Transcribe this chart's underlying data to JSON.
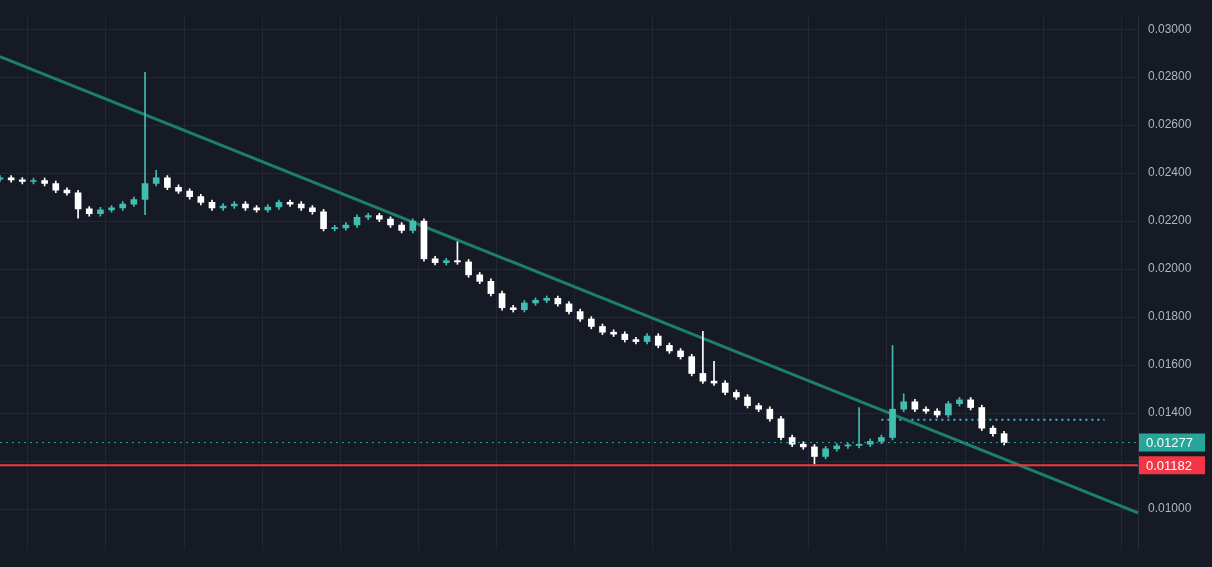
{
  "chart_data": {
    "type": "candlestick",
    "categories": [
      null,
      null,
      null,
      null,
      null,
      null,
      null,
      null,
      null,
      null,
      null,
      null,
      null,
      null,
      null,
      null,
      null,
      null,
      null,
      null,
      null,
      null,
      null,
      null,
      null,
      null,
      null,
      null,
      null,
      null,
      null,
      null,
      null,
      null,
      null,
      null,
      null,
      null,
      null,
      null,
      null,
      null,
      null,
      null,
      null,
      null,
      null,
      null,
      null,
      null,
      null,
      null,
      null,
      null,
      null,
      null,
      null,
      null,
      null,
      null,
      null,
      null,
      null,
      null,
      null,
      null,
      null,
      null,
      null,
      null,
      null,
      null,
      null,
      null,
      null,
      null,
      null,
      null,
      null,
      null,
      null,
      null,
      null,
      null,
      null,
      null,
      null,
      null,
      null,
      null,
      null,
      null,
      null,
      null,
      null,
      null,
      null,
      null,
      null,
      null,
      null,
      null,
      null
    ],
    "ohlc": [
      [
        0.02375,
        0.0239,
        0.02365,
        0.0238
      ],
      [
        0.0238,
        0.0239,
        0.02362,
        0.02372
      ],
      [
        0.02372,
        0.02382,
        0.02355,
        0.02365
      ],
      [
        0.02365,
        0.02379,
        0.02355,
        0.02369
      ],
      [
        0.02369,
        0.02379,
        0.02347,
        0.02357
      ],
      [
        0.02357,
        0.02367,
        0.02319,
        0.02329
      ],
      [
        0.02329,
        0.02339,
        0.02308,
        0.02318
      ],
      [
        0.02318,
        0.02328,
        0.02212,
        0.02251
      ],
      [
        0.02251,
        0.02261,
        0.02221,
        0.02231
      ],
      [
        0.02231,
        0.02257,
        0.02221,
        0.02247
      ],
      [
        0.02247,
        0.02265,
        0.02237,
        0.02255
      ],
      [
        0.02255,
        0.02281,
        0.02245,
        0.02271
      ],
      [
        0.02271,
        0.023,
        0.02261,
        0.0229
      ],
      [
        0.0229,
        0.0282,
        0.02227,
        0.02357
      ],
      [
        0.02357,
        0.02412,
        0.02347,
        0.0238
      ],
      [
        0.0238,
        0.0239,
        0.02331,
        0.02341
      ],
      [
        0.02341,
        0.02351,
        0.02315,
        0.02325
      ],
      [
        0.02325,
        0.02335,
        0.02292,
        0.02302
      ],
      [
        0.02302,
        0.02312,
        0.02268,
        0.02278
      ],
      [
        0.02278,
        0.02288,
        0.02245,
        0.02255
      ],
      [
        0.02255,
        0.02273,
        0.02245,
        0.02263
      ],
      [
        0.02263,
        0.02281,
        0.02253,
        0.02271
      ],
      [
        0.02271,
        0.02281,
        0.02245,
        0.02255
      ],
      [
        0.02255,
        0.02265,
        0.02237,
        0.02247
      ],
      [
        0.02247,
        0.02269,
        0.02237,
        0.02259
      ],
      [
        0.02259,
        0.02288,
        0.02249,
        0.02278
      ],
      [
        0.02278,
        0.02288,
        0.02261,
        0.02271
      ],
      [
        0.02271,
        0.02281,
        0.02245,
        0.02255
      ],
      [
        0.02255,
        0.02265,
        0.02229,
        0.02239
      ],
      [
        0.02239,
        0.02249,
        0.02159,
        0.02169
      ],
      [
        0.02169,
        0.02182,
        0.02159,
        0.02172
      ],
      [
        0.02172,
        0.02194,
        0.02162,
        0.02184
      ],
      [
        0.02184,
        0.02226,
        0.02174,
        0.02216
      ],
      [
        0.02216,
        0.02233,
        0.02206,
        0.02223
      ],
      [
        0.02223,
        0.02233,
        0.02198,
        0.02208
      ],
      [
        0.02208,
        0.02218,
        0.02174,
        0.02184
      ],
      [
        0.02184,
        0.02194,
        0.02151,
        0.02161
      ],
      [
        0.02161,
        0.0221,
        0.02151,
        0.022
      ],
      [
        0.022,
        0.0221,
        0.02033,
        0.02043
      ],
      [
        0.02043,
        0.02053,
        0.02017,
        0.02027
      ],
      [
        0.02027,
        0.02045,
        0.02017,
        0.02035
      ],
      [
        0.02035,
        0.02114,
        0.0202,
        0.0203
      ],
      [
        0.0203,
        0.0204,
        0.01966,
        0.01976
      ],
      [
        0.01976,
        0.01986,
        0.01939,
        0.01949
      ],
      [
        0.01949,
        0.01959,
        0.01888,
        0.01898
      ],
      [
        0.01898,
        0.01908,
        0.01829,
        0.01839
      ],
      [
        0.01839,
        0.01849,
        0.01821,
        0.01831
      ],
      [
        0.01831,
        0.01869,
        0.01821,
        0.01859
      ],
      [
        0.01859,
        0.0188,
        0.01849,
        0.0187
      ],
      [
        0.0187,
        0.01888,
        0.0186,
        0.01878
      ],
      [
        0.01878,
        0.01888,
        0.01845,
        0.01855
      ],
      [
        0.01855,
        0.01865,
        0.01813,
        0.01823
      ],
      [
        0.01823,
        0.01833,
        0.01782,
        0.01792
      ],
      [
        0.01792,
        0.01802,
        0.01751,
        0.01761
      ],
      [
        0.01761,
        0.01771,
        0.01727,
        0.01737
      ],
      [
        0.01737,
        0.01747,
        0.01719,
        0.01729
      ],
      [
        0.01729,
        0.01739,
        0.01696,
        0.01706
      ],
      [
        0.01706,
        0.01716,
        0.01688,
        0.01698
      ],
      [
        0.01698,
        0.01731,
        0.01688,
        0.01721
      ],
      [
        0.01721,
        0.01731,
        0.01672,
        0.01682
      ],
      [
        0.01682,
        0.01692,
        0.01649,
        0.01659
      ],
      [
        0.01659,
        0.01669,
        0.01625,
        0.01635
      ],
      [
        0.01635,
        0.01645,
        0.01555,
        0.01565
      ],
      [
        0.01565,
        0.01741,
        0.01523,
        0.01533
      ],
      [
        0.01533,
        0.01616,
        0.01515,
        0.01525
      ],
      [
        0.01525,
        0.01535,
        0.01476,
        0.01486
      ],
      [
        0.01486,
        0.01496,
        0.01457,
        0.01467
      ],
      [
        0.01467,
        0.01477,
        0.01421,
        0.01431
      ],
      [
        0.01431,
        0.01441,
        0.01406,
        0.01416
      ],
      [
        0.01416,
        0.01426,
        0.01366,
        0.01376
      ],
      [
        0.01376,
        0.01386,
        0.01288,
        0.01298
      ],
      [
        0.01298,
        0.01308,
        0.0126,
        0.0127
      ],
      [
        0.0127,
        0.0128,
        0.01249,
        0.01259
      ],
      [
        0.01259,
        0.01269,
        0.01188,
        0.01219
      ],
      [
        0.01219,
        0.01261,
        0.01209,
        0.01251
      ],
      [
        0.01251,
        0.01273,
        0.01241,
        0.01263
      ],
      [
        0.01263,
        0.01275,
        0.01253,
        0.01265
      ],
      [
        0.01265,
        0.01423,
        0.01255,
        0.0127
      ],
      [
        0.0127,
        0.01292,
        0.0126,
        0.01282
      ],
      [
        0.01282,
        0.01308,
        0.01272,
        0.01298
      ],
      [
        0.01298,
        0.01682,
        0.01288,
        0.01416
      ],
      [
        0.01416,
        0.0148,
        0.01406,
        0.01447
      ],
      [
        0.01447,
        0.01457,
        0.01406,
        0.01416
      ],
      [
        0.01416,
        0.01426,
        0.01398,
        0.01408
      ],
      [
        0.01408,
        0.01418,
        0.01382,
        0.01392
      ],
      [
        0.01392,
        0.01449,
        0.01382,
        0.01439
      ],
      [
        0.01439,
        0.01465,
        0.01429,
        0.01455
      ],
      [
        0.01455,
        0.01465,
        0.01413,
        0.01423
      ],
      [
        0.01423,
        0.01433,
        0.01327,
        0.01337
      ],
      [
        0.01337,
        0.01347,
        0.01304,
        0.01314
      ],
      [
        0.01314,
        0.01324,
        0.01267,
        0.01277
      ],
      null,
      null,
      null,
      null,
      null,
      null,
      null,
      null,
      null,
      null,
      null,
      null
    ],
    "colors": [
      "#42bdb0",
      "#ffffff",
      "#ffffff",
      "#42bdb0",
      "#ffffff",
      "#ffffff",
      "#ffffff",
      "#ffffff",
      "#ffffff",
      "#42bdb0",
      "#42bdb0",
      "#42bdb0",
      "#42bdb0",
      "#42bdb0",
      "#42bdb0",
      "#ffffff",
      "#ffffff",
      "#ffffff",
      "#ffffff",
      "#ffffff",
      "#42bdb0",
      "#42bdb0",
      "#ffffff",
      "#ffffff",
      "#42bdb0",
      "#42bdb0",
      "#ffffff",
      "#ffffff",
      "#ffffff",
      "#ffffff",
      "#42bdb0",
      "#42bdb0",
      "#42bdb0",
      "#42bdb0",
      "#ffffff",
      "#ffffff",
      "#ffffff",
      "#42bdb0",
      "#ffffff",
      "#ffffff",
      "#42bdb0",
      "#ffffff",
      "#ffffff",
      "#ffffff",
      "#ffffff",
      "#ffffff",
      "#ffffff",
      "#42bdb0",
      "#42bdb0",
      "#42bdb0",
      "#ffffff",
      "#ffffff",
      "#ffffff",
      "#ffffff",
      "#ffffff",
      "#ffffff",
      "#ffffff",
      "#ffffff",
      "#42bdb0",
      "#ffffff",
      "#ffffff",
      "#ffffff",
      "#ffffff",
      "#ffffff",
      "#ffffff",
      "#ffffff",
      "#ffffff",
      "#ffffff",
      "#ffffff",
      "#ffffff",
      "#ffffff",
      "#ffffff",
      "#ffffff",
      "#ffffff",
      "#42bdb0",
      "#42bdb0",
      "#42bdb0",
      "#42bdb0",
      "#42bdb0",
      "#42bdb0",
      "#42bdb0",
      "#42bdb0",
      "#ffffff",
      "#ffffff",
      "#ffffff",
      "#42bdb0",
      "#42bdb0",
      "#ffffff",
      "#ffffff",
      "#ffffff",
      "#ffffff",
      null,
      null,
      null,
      null,
      null,
      null,
      null,
      null,
      null,
      null,
      null,
      null
    ],
    "series": [
      {
        "type": "line",
        "color": "#1b7f6c",
        "values": [
          0.02886,
          null,
          null,
          null,
          null,
          null,
          null,
          null,
          null,
          null,
          null,
          null,
          null,
          null,
          null,
          null,
          null,
          null,
          null,
          null,
          null,
          null,
          null,
          null,
          null,
          null,
          null,
          null,
          null,
          null,
          null,
          null,
          null,
          null,
          null,
          null,
          null,
          null,
          null,
          null,
          null,
          null,
          null,
          null,
          null,
          null,
          null,
          null,
          null,
          null,
          null,
          null,
          null,
          null,
          null,
          null,
          null,
          null,
          null,
          null,
          null,
          null,
          null,
          null,
          null,
          null,
          null,
          null,
          null,
          null,
          null,
          null,
          null,
          null,
          null,
          null,
          null,
          null,
          null,
          null,
          null,
          null,
          null,
          null,
          null,
          null,
          null,
          null,
          null,
          null,
          null,
          null,
          null,
          null,
          null,
          null,
          null,
          null,
          null,
          null,
          null,
          null,
          0.00984
        ]
      },
      {
        "type": "line",
        "color": "#3fb8d8",
        "line_style": "dotted",
        "values": [
          null,
          null,
          null,
          null,
          null,
          null,
          null,
          null,
          null,
          null,
          null,
          null,
          null,
          null,
          null,
          null,
          null,
          null,
          null,
          null,
          null,
          null,
          null,
          null,
          null,
          null,
          null,
          null,
          null,
          null,
          null,
          null,
          null,
          null,
          null,
          null,
          null,
          null,
          null,
          null,
          null,
          null,
          null,
          null,
          null,
          null,
          null,
          null,
          null,
          null,
          null,
          null,
          null,
          null,
          null,
          null,
          null,
          null,
          null,
          null,
          null,
          null,
          null,
          null,
          null,
          null,
          null,
          null,
          null,
          null,
          null,
          null,
          null,
          null,
          null,
          null,
          null,
          null,
          null,
          0.01372,
          null,
          null,
          null,
          null,
          null,
          null,
          null,
          null,
          null,
          null,
          null,
          null,
          null,
          null,
          null,
          null,
          null,
          null,
          null,
          0.01372,
          null,
          null,
          null
        ]
      }
    ],
    "ylim": [
      0.0083,
      0.0305
    ],
    "yticks": [
      {
        "value": 0.01,
        "label": "0.01000"
      },
      {
        "value": 0.012,
        "label": null
      },
      {
        "value": 0.014,
        "label": "0.01400"
      },
      {
        "value": 0.016,
        "label": "0.01600"
      },
      {
        "value": 0.018,
        "label": "0.01800"
      },
      {
        "value": 0.02,
        "label": "0.02000"
      },
      {
        "value": 0.022,
        "label": "0.02200"
      },
      {
        "value": 0.024,
        "label": "0.02400"
      },
      {
        "value": 0.026,
        "label": "0.02600"
      },
      {
        "value": 0.028,
        "label": "0.02800"
      },
      {
        "value": 0.03,
        "label": "0.03000"
      }
    ],
    "ref_lines": [
      {
        "axis": "y",
        "value": 0.01277,
        "label": "0.01277",
        "color": "#26a69a",
        "line_style": "dotted"
      },
      {
        "axis": "y",
        "value": 0.01182,
        "label": "0.01182",
        "color": "#f23645"
      }
    ],
    "grid": true,
    "tick_labels": "y"
  }
}
